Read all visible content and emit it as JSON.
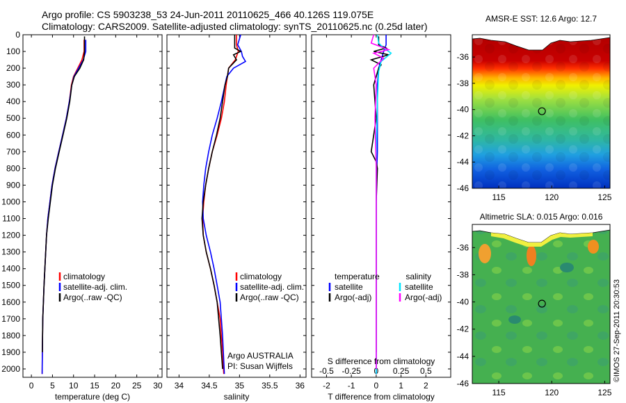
{
  "title": {
    "line1": "Argo profile: CS 5903238_53 24-Jun-2011 20110625_466 40.126S 119.075E",
    "line2": "Climatology: CARS2009. Satellite-adjusted climatology: synTS_20110625.nc (0.25d later)"
  },
  "colors": {
    "climatology": "#ff0000",
    "satellite": "#0000ff",
    "argo": "#000000",
    "satellite_salinity": "#00e5ff",
    "argo_salinity": "#ff00ff"
  },
  "chart_data": [
    {
      "id": "temperature",
      "type": "line",
      "xlabel": "temperature (deg C)",
      "ylabel": "",
      "xlim": [
        -2,
        31
      ],
      "ylim": [
        2050,
        0
      ],
      "xticks": [
        0,
        5,
        10,
        15,
        20,
        25,
        30
      ],
      "yticks": [
        0,
        100,
        200,
        300,
        400,
        500,
        600,
        700,
        800,
        900,
        1000,
        1100,
        1200,
        1300,
        1400,
        1500,
        1600,
        1700,
        1800,
        1900,
        2000
      ],
      "legend": {
        "position": "lower-center",
        "entries": [
          "climatology",
          "satellite-adj. clim.",
          "Argo(..raw -QC)"
        ]
      },
      "series": [
        {
          "name": "climatology",
          "color": "#ff0000",
          "x": [
            12.5,
            12.5,
            12.0,
            11.0,
            10.0,
            9.5,
            9.0,
            8.3,
            7.4,
            6.5,
            5.6,
            4.9,
            4.4,
            3.9,
            3.6,
            3.4,
            3.2,
            3.0,
            2.85,
            2.7,
            2.6,
            2.55
          ],
          "y": [
            30,
            100,
            150,
            200,
            250,
            300,
            400,
            500,
            600,
            700,
            800,
            900,
            1000,
            1100,
            1200,
            1300,
            1400,
            1500,
            1600,
            1700,
            1900,
            2030
          ]
        },
        {
          "name": "satellite-adj. clim.",
          "color": "#0000ff",
          "x": [
            12.9,
            12.9,
            12.3,
            11.2,
            10.1,
            9.6,
            9.0,
            8.3,
            7.4,
            6.5,
            5.6,
            4.9,
            4.4,
            3.9,
            3.6,
            3.4,
            3.2,
            3.0,
            2.85,
            2.7,
            2.6,
            2.55
          ],
          "y": [
            30,
            100,
            150,
            200,
            250,
            300,
            400,
            500,
            600,
            700,
            800,
            900,
            1000,
            1100,
            1200,
            1300,
            1400,
            1500,
            1600,
            1700,
            1900,
            2030
          ]
        },
        {
          "name": "Argo(..raw -QC)",
          "color": "#000000",
          "x": [
            12.6,
            12.6,
            12.4,
            11.5,
            10.2,
            9.6,
            9.1,
            8.4,
            7.5,
            6.6,
            5.7,
            5.0,
            4.5,
            4.0,
            3.6,
            3.4,
            3.2,
            3.0,
            2.85,
            2.7,
            2.6
          ],
          "y": [
            10,
            100,
            150,
            200,
            250,
            300,
            400,
            500,
            600,
            700,
            800,
            900,
            1000,
            1100,
            1200,
            1300,
            1400,
            1500,
            1600,
            1700,
            1900
          ]
        }
      ]
    },
    {
      "id": "salinity",
      "type": "line",
      "xlabel": "salinity",
      "ylabel": "",
      "xlim": [
        33.8,
        36.1
      ],
      "ylim": [
        2050,
        0
      ],
      "xticks": [
        34,
        34.5,
        35,
        35.5,
        36
      ],
      "yticks": [
        0,
        100,
        200,
        300,
        400,
        500,
        600,
        700,
        800,
        900,
        1000,
        1100,
        1200,
        1300,
        1400,
        1500,
        1600,
        1700,
        1800,
        1900,
        2000
      ],
      "annotations": [
        "Argo AUSTRALIA",
        "PI: Susan Wijffels"
      ],
      "legend": {
        "position": "lower-center",
        "entries": [
          "climatology",
          "satellite-adj. clim.",
          "Argo(..raw -QC)"
        ]
      },
      "series": [
        {
          "name": "climatology",
          "color": "#ff0000",
          "x": [
            34.95,
            34.95,
            34.98,
            34.93,
            34.82,
            34.78,
            34.75,
            34.7,
            34.63,
            34.55,
            34.49,
            34.44,
            34.41,
            34.39,
            34.4,
            34.45,
            34.52,
            34.58,
            34.63,
            34.68,
            34.72,
            34.74
          ],
          "y": [
            0,
            60,
            100,
            150,
            200,
            300,
            400,
            500,
            600,
            700,
            800,
            900,
            1000,
            1100,
            1200,
            1300,
            1400,
            1500,
            1600,
            1700,
            1900,
            2030
          ]
        },
        {
          "name": "satellite-adj. clim.",
          "color": "#0000ff",
          "x": [
            35.02,
            34.97,
            35.03,
            35.05,
            35.1,
            34.9,
            34.79,
            34.76,
            34.7,
            34.63,
            34.55,
            34.49,
            34.44,
            34.41,
            34.39,
            34.4,
            34.45,
            34.52,
            34.58,
            34.63,
            34.68,
            34.72,
            34.75
          ],
          "y": [
            0,
            60,
            100,
            130,
            160,
            200,
            250,
            300,
            400,
            500,
            600,
            700,
            800,
            900,
            1000,
            1100,
            1200,
            1300,
            1400,
            1500,
            1600,
            1800,
            2030
          ]
        },
        {
          "name": "Argo(..raw -QC)",
          "color": "#000000",
          "x": [
            34.92,
            34.92,
            35.02,
            34.9,
            34.95,
            34.82,
            34.8,
            34.76,
            34.72,
            34.68,
            34.62,
            34.55,
            34.49,
            34.44,
            34.4,
            34.38,
            34.4,
            34.45,
            34.52,
            34.58,
            34.63,
            34.68,
            34.72
          ],
          "y": [
            0,
            80,
            100,
            120,
            150,
            200,
            250,
            300,
            400,
            500,
            600,
            700,
            800,
            900,
            1000,
            1100,
            1200,
            1300,
            1400,
            1500,
            1600,
            1800,
            2000
          ]
        }
      ]
    },
    {
      "id": "difference",
      "type": "line",
      "xlabel": "T difference from climatology",
      "xlabel_top": "S difference from climatology",
      "xlim": [
        -2.6,
        3
      ],
      "ylim": [
        2050,
        0
      ],
      "xticks": [
        -2,
        -1,
        0,
        1,
        2
      ],
      "xticks_top": [
        -0.5,
        -0.25,
        0,
        0.25,
        0.5
      ],
      "yticks": [
        0,
        100,
        200,
        300,
        400,
        500,
        600,
        700,
        800,
        900,
        1000,
        1100,
        1200,
        1300,
        1400,
        1500,
        1600,
        1700,
        1800,
        1900,
        2000
      ],
      "legend": {
        "position": "lower-center",
        "temperature_label": "temperature",
        "salinity_label": "salinity",
        "entries": [
          "satellite",
          "Argo(-adj)",
          "satellite",
          "Argo(-adj)"
        ]
      },
      "series": [
        {
          "name": "temperature satellite",
          "color": "#0000ff",
          "x": [
            0.4,
            0.4,
            0.3,
            0.2,
            0.1,
            0.05,
            0.05,
            0.05,
            0.0,
            0.0,
            0.0,
            0.0,
            0.0,
            0.0,
            0.0
          ],
          "y": [
            0,
            60,
            100,
            150,
            200,
            300,
            500,
            700,
            900,
            1100,
            1300,
            1500,
            1700,
            1900,
            2030
          ]
        },
        {
          "name": "temperature Argo(-adj)",
          "color": "#000000",
          "x": [
            0.1,
            0.1,
            0.4,
            -0.1,
            0.5,
            -0.2,
            0.2,
            0.1,
            -0.1,
            0.0,
            -0.2,
            0.0,
            0.05,
            0.0,
            0.0,
            0.0,
            0.0,
            0.0,
            0.0
          ],
          "y": [
            10,
            60,
            80,
            100,
            120,
            150,
            180,
            200,
            300,
            500,
            700,
            760,
            800,
            1000,
            1200,
            1400,
            1600,
            1800,
            1900
          ]
        },
        {
          "name": "salinity satellite",
          "color": "#00e5ff",
          "x": [
            0.05,
            0.1,
            0.3,
            0.6,
            0.2,
            0.1,
            0.05,
            0.0,
            0.0,
            0.0,
            0.0,
            0.0
          ],
          "y": [
            0,
            50,
            80,
            110,
            160,
            220,
            400,
            700,
            1000,
            1400,
            1800,
            2030
          ]
        },
        {
          "name": "salinity Argo(-adj)",
          "color": "#ff00ff",
          "x": [
            -0.1,
            -0.2,
            0.5,
            -0.1,
            0.3,
            -0.1,
            0.0,
            -0.05,
            0.0,
            0.0,
            0.0,
            0.0
          ],
          "y": [
            0,
            50,
            90,
            110,
            140,
            200,
            300,
            500,
            800,
            1200,
            1600,
            2000
          ]
        }
      ]
    },
    {
      "id": "sst_map",
      "type": "heatmap",
      "title": "AMSR-E SST: 12.6 Argo: 12.7",
      "xlim": [
        112.5,
        125.5
      ],
      "ylim": [
        -46,
        -34.3
      ],
      "xticks": [
        115,
        120,
        125
      ],
      "yticks": [
        -36,
        -38,
        -40,
        -42,
        -44,
        -46
      ],
      "marker": {
        "lon": 119.075,
        "lat": -40.126
      }
    },
    {
      "id": "sla_map",
      "type": "heatmap",
      "title": "Altimetric SLA: 0.015 Argo: 0.016",
      "xlim": [
        112.5,
        125.5
      ],
      "ylim": [
        -46,
        -34.3
      ],
      "xticks": [
        115,
        120,
        125
      ],
      "yticks": [
        -36,
        -38,
        -40,
        -42,
        -44,
        -46
      ],
      "marker": {
        "lon": 119.075,
        "lat": -40.126
      }
    }
  ],
  "credit": "©IMOS 27-Sep-2011 20:30:53"
}
